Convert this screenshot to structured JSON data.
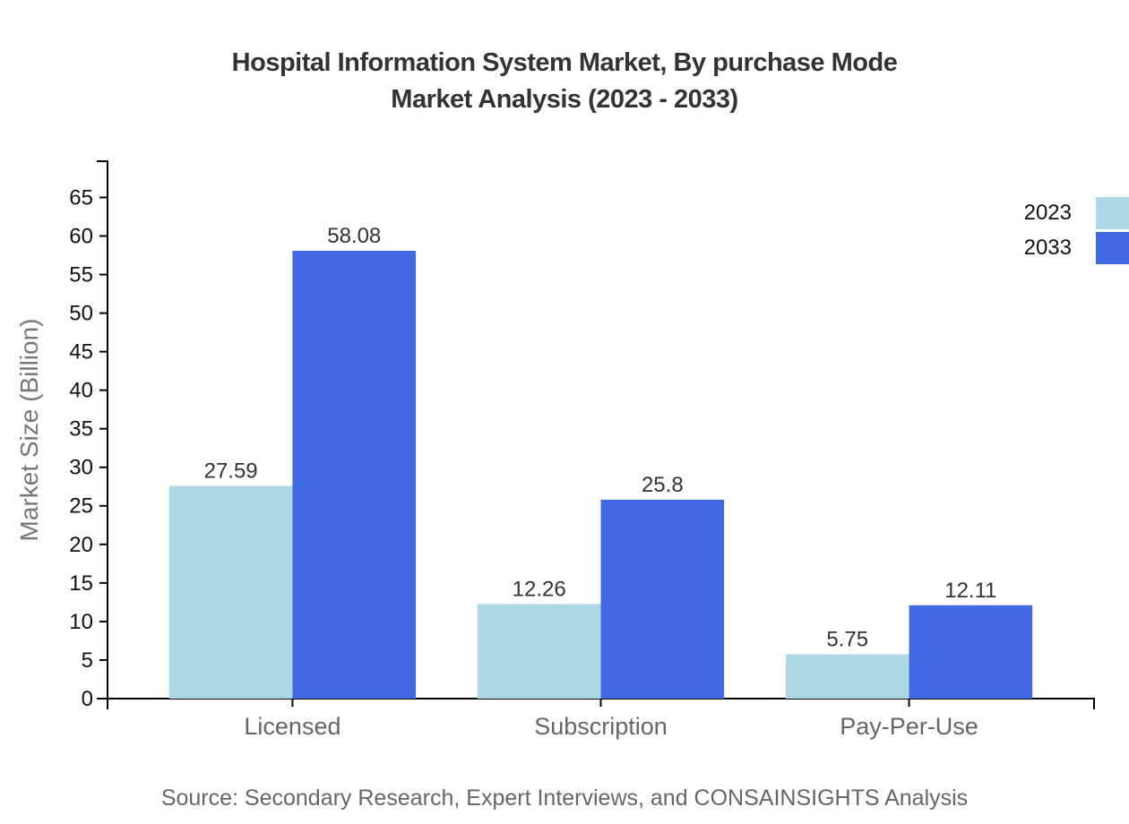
{
  "title": {
    "line1": "Hospital Information System Market, By purchase Mode",
    "line2": "Market Analysis (2023 - 2033)"
  },
  "chart_data": {
    "type": "bar",
    "title": "Hospital Information System Market, By purchase Mode Market Analysis (2023 - 2033)",
    "categories": [
      "Licensed",
      "Subscription",
      "Pay-Per-Use"
    ],
    "series": [
      {
        "name": "2023",
        "color": "#ADD8E6",
        "values": [
          27.59,
          12.26,
          5.75
        ]
      },
      {
        "name": "2033",
        "color": "#4169E1",
        "values": [
          58.08,
          25.8,
          12.11
        ]
      }
    ],
    "xlabel": "",
    "ylabel": "Market Size (Billion)",
    "ylim": [
      0,
      69.7
    ],
    "yticks": [
      0,
      5,
      10,
      15,
      20,
      25,
      30,
      35,
      40,
      45,
      50,
      55,
      60,
      65
    ],
    "grid": false,
    "legend_position": "top-right",
    "value_label_format": "as-is"
  },
  "source": {
    "text": "Source: Secondary Research, Expert Interviews, and CONSAINSIGHTS Analysis"
  },
  "colors": {
    "title": "#333333",
    "axis": "#000000",
    "tick_label": "#111111",
    "category_label": "#666666",
    "value_label": "#333333",
    "ylabel_text": "#777777",
    "source_text": "#666666",
    "background": "#ffffff"
  }
}
